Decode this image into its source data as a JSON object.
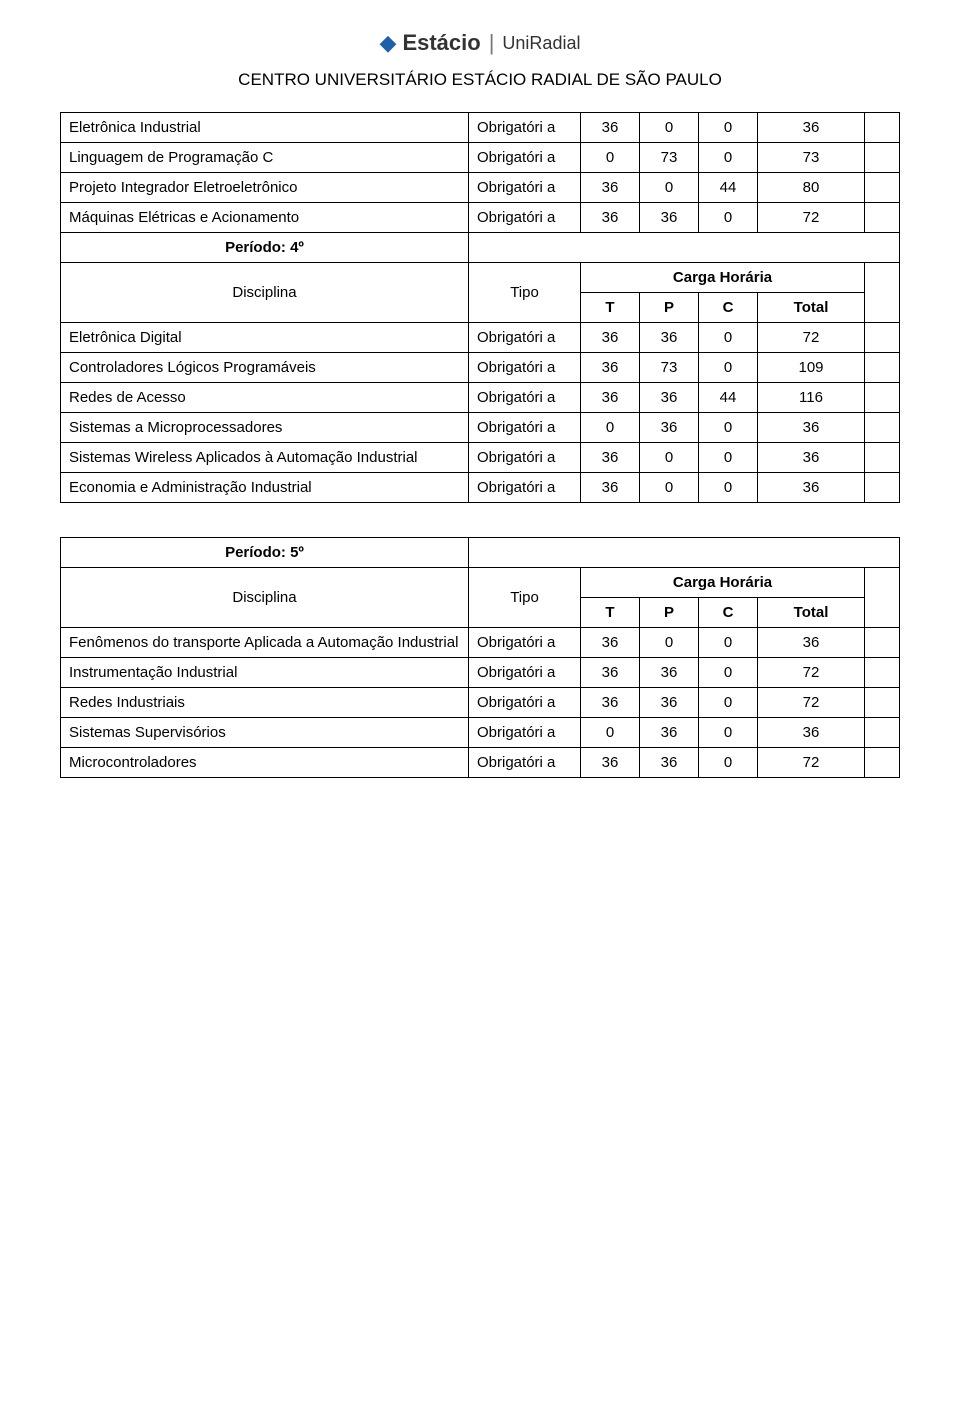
{
  "header": {
    "brand_left": "Estácio",
    "brand_right": "UniRadial",
    "center_title": "CENTRO UNIVERSITÁRIO ESTÁCIO RADIAL DE SÃO PAULO"
  },
  "labels": {
    "disciplina": "Disciplina",
    "tipo": "Tipo",
    "carga_horaria": "Carga Horária",
    "T": "T",
    "P": "P",
    "C": "C",
    "total": "Total",
    "obrig": "Obrigatóri\na",
    "periodo4": "Período: 4º",
    "periodo5": "Período: 5º"
  },
  "block1_rows": [
    {
      "name": "Eletrônica Industrial",
      "t": "36",
      "p": "0",
      "c": "0",
      "total": "36"
    },
    {
      "name": "Linguagem de Programação C",
      "t": "0",
      "p": "73",
      "c": "0",
      "total": "73"
    },
    {
      "name": "Projeto Integrador Eletroeletrônico",
      "t": "36",
      "p": "0",
      "c": "44",
      "total": "80"
    },
    {
      "name": "Máquinas Elétricas e Acionamento",
      "t": "36",
      "p": "36",
      "c": "0",
      "total": "72"
    }
  ],
  "block2_rows": [
    {
      "name": "Eletrônica Digital",
      "t": "36",
      "p": "36",
      "c": "0",
      "total": "72"
    },
    {
      "name": "Controladores Lógicos Programáveis",
      "t": "36",
      "p": "73",
      "c": "0",
      "total": "109"
    },
    {
      "name": "Redes de Acesso",
      "t": "36",
      "p": "36",
      "c": "44",
      "total": "116"
    },
    {
      "name": "Sistemas a Microprocessadores",
      "t": "0",
      "p": "36",
      "c": "0",
      "total": "36"
    },
    {
      "name": "Sistemas Wireless Aplicados à Automação Industrial",
      "t": "36",
      "p": "0",
      "c": "0",
      "total": "36"
    },
    {
      "name": "Economia e Administração Industrial",
      "t": "36",
      "p": "0",
      "c": "0",
      "total": "36"
    }
  ],
  "block3_rows": [
    {
      "name": "Fenômenos do transporte Aplicada a Automação Industrial",
      "t": "36",
      "p": "0",
      "c": "0",
      "total": "36"
    },
    {
      "name": "Instrumentação Industrial",
      "t": "36",
      "p": "36",
      "c": "0",
      "total": "72"
    },
    {
      "name": "Redes Industriais",
      "t": "36",
      "p": "36",
      "c": "0",
      "total": "72"
    },
    {
      "name": "Sistemas Supervisórios",
      "t": "0",
      "p": "36",
      "c": "0",
      "total": "36"
    },
    {
      "name": "Microcontroladores",
      "t": "36",
      "p": "36",
      "c": "0",
      "total": "72"
    }
  ]
}
